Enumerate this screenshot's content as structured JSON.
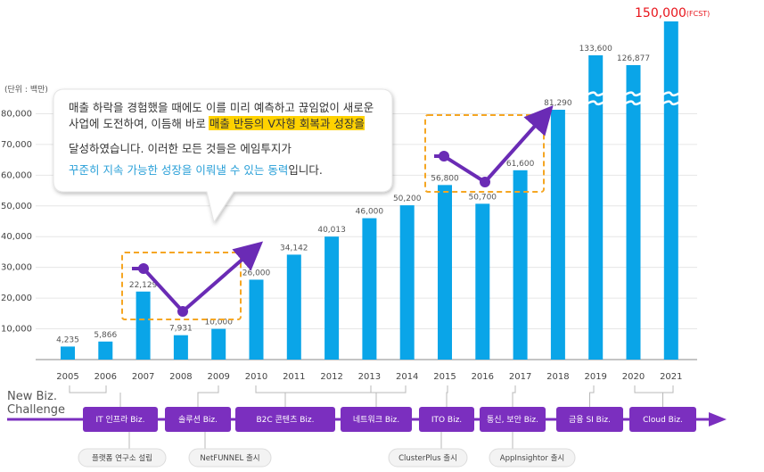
{
  "chart_data": {
    "type": "bar",
    "unit_label": "(단위 : 백만)",
    "categories": [
      "2005",
      "2006",
      "2007",
      "2008",
      "2009",
      "2010",
      "2011",
      "2012",
      "2013",
      "2014",
      "2015",
      "2016",
      "2017",
      "2018",
      "2019",
      "2020",
      "2021"
    ],
    "values": [
      4235,
      5866,
      22129,
      7931,
      10000,
      26000,
      34142,
      40013,
      46000,
      50200,
      56800,
      50700,
      61600,
      81290,
      133600,
      126877,
      150000
    ],
    "value_labels": [
      "4,235",
      "5,866",
      "22,129",
      "7,931",
      "10,000",
      "26,000",
      "34,142",
      "40,013",
      "46,000",
      "50,200",
      "56,800",
      "50,700",
      "61,600",
      "81,290",
      "133,600",
      "126,877",
      "150,000"
    ],
    "forecast_suffix": "(FCST)",
    "y_ticks": [
      "10,000",
      "20,000",
      "30,000",
      "40,000",
      "50,000",
      "60,000",
      "70,000",
      "80,000"
    ],
    "ylim": [
      0,
      90000
    ],
    "broken_axis_years": [
      "2019",
      "2020",
      "2021"
    ],
    "bar_color": "#0aa5e8",
    "forecast_label_color": "#e8141b",
    "trend_color": "#6a2bb5",
    "highlight_color": "#ffd200",
    "dashed_box_color": "#f5a623"
  },
  "callout": {
    "line1": "매출 하락을 경험했을 때에도 이를 미리 예측하고 끊임없이 새로운",
    "line2_a": "사업에 도전하여, 이듬해 바로 ",
    "line2_b": "매출 반등의 V자형 회복과 성장",
    "line2_c": "을",
    "line3": "달성하였습니다. 이러한 모든 것들은 에임투지가",
    "line4_a": "꾸준히 지속 가능한 성장을 이뤄낼 수 있는 동력",
    "line4_b": "입니다."
  },
  "timeline": {
    "title_line1": "New Biz.",
    "title_line2": "Challenge",
    "arrow_color": "#7b2fbf",
    "milestones": [
      {
        "label": "IT 인프라 Biz.",
        "sub": "플랫폼 연구소 설립"
      },
      {
        "label": "솔루션 Biz.",
        "sub": "NetFUNNEL 출시"
      },
      {
        "label": "B2C 콘텐츠 Biz.",
        "sub": ""
      },
      {
        "label": "네트워크 Biz.",
        "sub": ""
      },
      {
        "label": "ITO Biz.",
        "sub": "ClusterPlus 출시"
      },
      {
        "label": "통신, 보안 Biz.",
        "sub": "AppInsightor 출시"
      },
      {
        "label": "금융 SI Biz.",
        "sub": ""
      },
      {
        "label": "Cloud Biz.",
        "sub": ""
      }
    ]
  }
}
